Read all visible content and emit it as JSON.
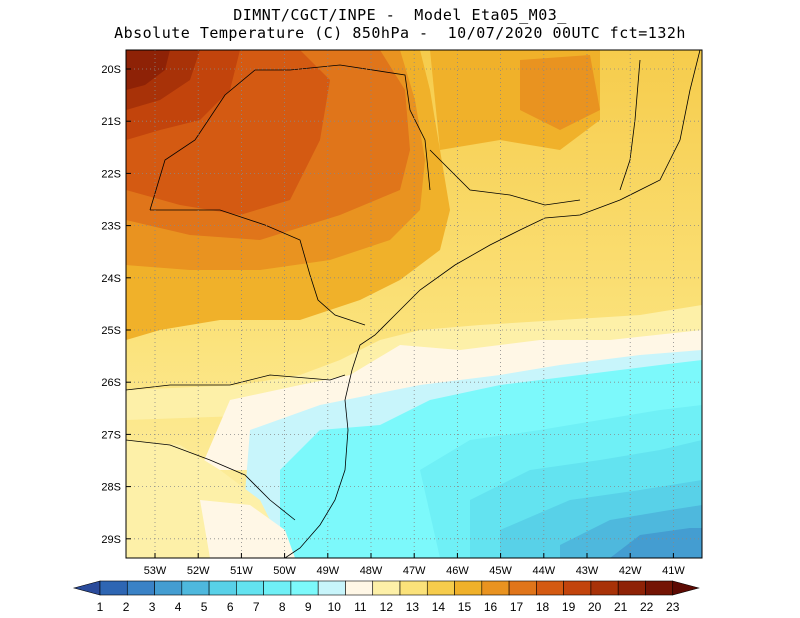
{
  "title": {
    "line1": "DIMNT/CGCT/INPE -  Model Eta05_M03_",
    "line2": "Absolute Temperature (C) 850hPa -  10/07/2020 00UTC fct=132h"
  },
  "map": {
    "lat_labels": [
      "20S",
      "21S",
      "22S",
      "23S",
      "24S",
      "25S",
      "26S",
      "27S",
      "28S",
      "29S"
    ],
    "lon_labels": [
      "53W",
      "52W",
      "51W",
      "50W",
      "49W",
      "48W",
      "47W",
      "46W",
      "45W",
      "44W",
      "43W",
      "42W",
      "41W"
    ]
  },
  "colorbar": {
    "labels": [
      "1",
      "2",
      "3",
      "4",
      "5",
      "6",
      "7",
      "8",
      "9",
      "10",
      "11",
      "12",
      "13",
      "14",
      "15",
      "16",
      "17",
      "18",
      "19",
      "20",
      "21",
      "22",
      "23"
    ],
    "colors": [
      "#2a4b9b",
      "#2e66b3",
      "#3a82c6",
      "#449dd1",
      "#4eb8dd",
      "#58d1e8",
      "#63e3f0",
      "#6ff0f6",
      "#7cf9fb",
      "#c8f5fb",
      "#fff7e6",
      "#fdf0a8",
      "#fbe27a",
      "#f6cc4c",
      "#f0b12a",
      "#e99320",
      "#e0751a",
      "#d45a12",
      "#c2440c",
      "#a83208",
      "#8e2206",
      "#741404",
      "#5c0a03"
    ]
  }
}
